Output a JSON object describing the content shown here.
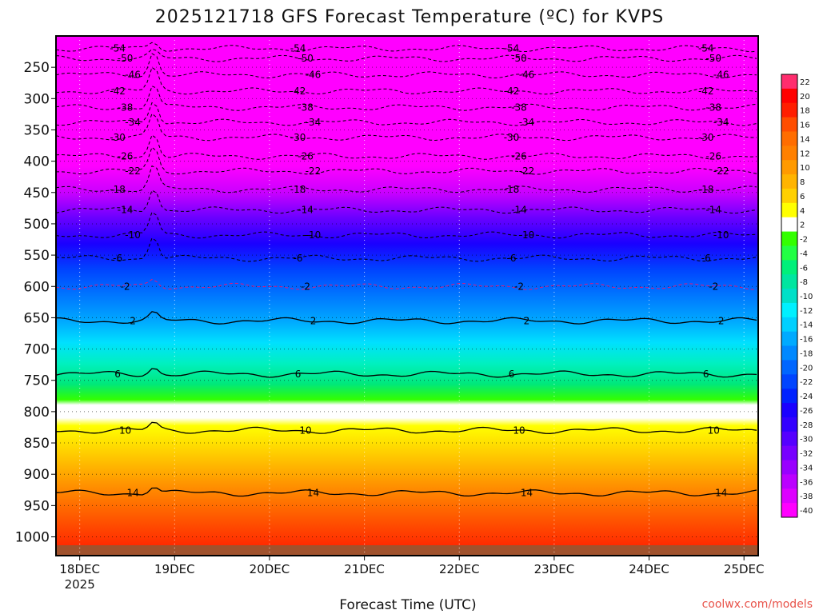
{
  "chart_data": {
    "type": "heatmap",
    "title": "2025121718 GFS Forecast Temperature (ºC) for KVPS",
    "xlabel": "Forecast Time (UTC)",
    "ylabel": "",
    "y_ticks": [
      "250",
      "300",
      "350",
      "400",
      "450",
      "500",
      "550",
      "600",
      "650",
      "700",
      "750",
      "800",
      "850",
      "900",
      "950",
      "1000"
    ],
    "x_ticks": [
      {
        "label": "18DEC",
        "sub": "2025"
      },
      {
        "label": "19DEC",
        "sub": ""
      },
      {
        "label": "20DEC",
        "sub": ""
      },
      {
        "label": "21DEC",
        "sub": ""
      },
      {
        "label": "22DEC",
        "sub": ""
      },
      {
        "label": "23DEC",
        "sub": ""
      },
      {
        "label": "24DEC",
        "sub": ""
      },
      {
        "label": "25DEC",
        "sub": ""
      }
    ],
    "y_range_hpa": [
      200,
      1030
    ],
    "x_range_days": [
      -0.25,
      7.15
    ],
    "colorbar": {
      "labels": [
        "22",
        "20",
        "18",
        "16",
        "14",
        "12",
        "10",
        "8",
        "6",
        "4",
        "2",
        "-2",
        "-4",
        "-6",
        "-8",
        "-10",
        "-12",
        "-14",
        "-16",
        "-18",
        "-20",
        "-22",
        "-24",
        "-26",
        "-28",
        "-30",
        "-32",
        "-34",
        "-36",
        "-38",
        "-40"
      ],
      "colors": [
        "#ff2d6e",
        "#ff0000",
        "#ff1e00",
        "#ff4d00",
        "#ff6d00",
        "#ff8000",
        "#ff9a00",
        "#ffb400",
        "#ffd000",
        "#ffff00",
        "#ffffff",
        "#33ff00",
        "#22ff44",
        "#00f07a",
        "#00e6a0",
        "#00e0c8",
        "#00f0ff",
        "#00d0ff",
        "#00aaff",
        "#0088ff",
        "#0066ff",
        "#0044ff",
        "#0022ff",
        "#1a00ff",
        "#3300ff",
        "#5500ff",
        "#7700ff",
        "#9900ff",
        "#bb00ff",
        "#dd00ff",
        "#ff00ff"
      ]
    },
    "isotherms": [
      {
        "value": -54,
        "label": "-54",
        "pressure": 220
      },
      {
        "value": -50,
        "label": "-50",
        "pressure": 236
      },
      {
        "value": -46,
        "label": "-46",
        "pressure": 262
      },
      {
        "value": -42,
        "label": "-42",
        "pressure": 288
      },
      {
        "value": -38,
        "label": "-38",
        "pressure": 314
      },
      {
        "value": -34,
        "label": "-34",
        "pressure": 338
      },
      {
        "value": -30,
        "label": "-30",
        "pressure": 362
      },
      {
        "value": -26,
        "label": "-26",
        "pressure": 392
      },
      {
        "value": -22,
        "label": "-22",
        "pressure": 416
      },
      {
        "value": -18,
        "label": "-18",
        "pressure": 445
      },
      {
        "value": -14,
        "label": "-14",
        "pressure": 478
      },
      {
        "value": -10,
        "label": "-10",
        "pressure": 518
      },
      {
        "value": -6,
        "label": "-6",
        "pressure": 555
      },
      {
        "value": -2,
        "label": "-2",
        "pressure": 600
      },
      {
        "value": 2,
        "label": "2",
        "pressure": 655
      },
      {
        "value": 6,
        "label": "6",
        "pressure": 740
      },
      {
        "value": 10,
        "label": "10",
        "pressure": 830
      },
      {
        "value": 14,
        "label": "14",
        "pressure": 930
      }
    ],
    "profile_temps": [
      {
        "p": 200,
        "t": -58
      },
      {
        "p": 250,
        "t": -50
      },
      {
        "p": 300,
        "t": -40
      },
      {
        "p": 350,
        "t": -33
      },
      {
        "p": 400,
        "t": -27
      },
      {
        "p": 450,
        "t": -19
      },
      {
        "p": 500,
        "t": -14
      },
      {
        "p": 550,
        "t": -8
      },
      {
        "p": 600,
        "t": -3
      },
      {
        "p": 650,
        "t": 2
      },
      {
        "p": 700,
        "t": 4
      },
      {
        "p": 750,
        "t": 7
      },
      {
        "p": 800,
        "t": 10
      },
      {
        "p": 850,
        "t": 12
      },
      {
        "p": 900,
        "t": 14
      },
      {
        "p": 950,
        "t": 16
      },
      {
        "p": 1000,
        "t": 18
      }
    ]
  },
  "credit": "coolwx.com/models"
}
